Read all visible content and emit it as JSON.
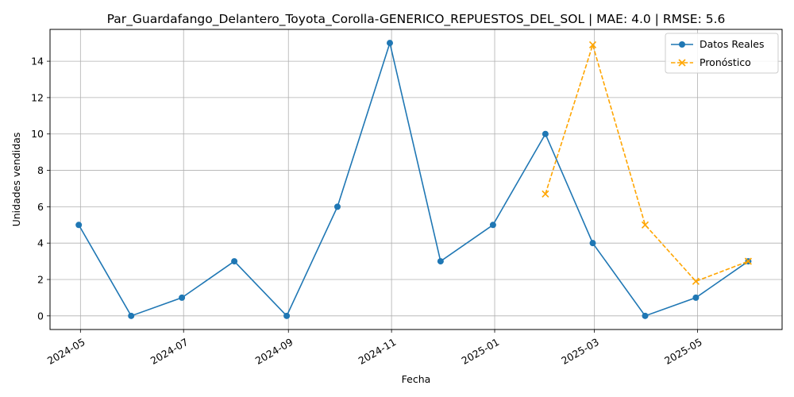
{
  "chart_data": {
    "type": "line",
    "title": "Par_Guardafango_Delantero_Toyota_Corolla-GENERICO_REPUESTOS_DEL_SOL | MAE: 4.0 | RMSE: 5.6",
    "xlabel": "Fecha",
    "ylabel": "Unidades vendidas",
    "grid": true,
    "legend_position": "top-right",
    "x_tick_labels": [
      "2024-05",
      "2024-07",
      "2024-09",
      "2024-11",
      "2025-01",
      "2025-03",
      "2025-05"
    ],
    "y_ticks": [
      0,
      2,
      4,
      6,
      8,
      10,
      12,
      14
    ],
    "ylim": [
      -0.75,
      15.75
    ],
    "xlim": [
      "2024-04-13",
      "2025-06-20"
    ],
    "series": [
      {
        "name": "Datos Reales",
        "color": "#1f77b4",
        "marker": "circle",
        "linestyle": "solid",
        "x": [
          "2024-04-30",
          "2024-05-31",
          "2024-06-30",
          "2024-07-31",
          "2024-08-31",
          "2024-09-30",
          "2024-10-31",
          "2024-11-30",
          "2024-12-31",
          "2025-01-31",
          "2025-02-28",
          "2025-03-31",
          "2025-04-30",
          "2025-05-31"
        ],
        "values": [
          5,
          0,
          1,
          3,
          0,
          6,
          15,
          3,
          5,
          10,
          4,
          0,
          1,
          3
        ]
      },
      {
        "name": "Pronóstico",
        "color": "#ffa500",
        "marker": "x",
        "linestyle": "dashed",
        "x": [
          "2025-01-31",
          "2025-02-28",
          "2025-03-31",
          "2025-04-30",
          "2025-05-31"
        ],
        "values": [
          6.7,
          14.9,
          5.0,
          1.9,
          3.0
        ]
      }
    ]
  }
}
